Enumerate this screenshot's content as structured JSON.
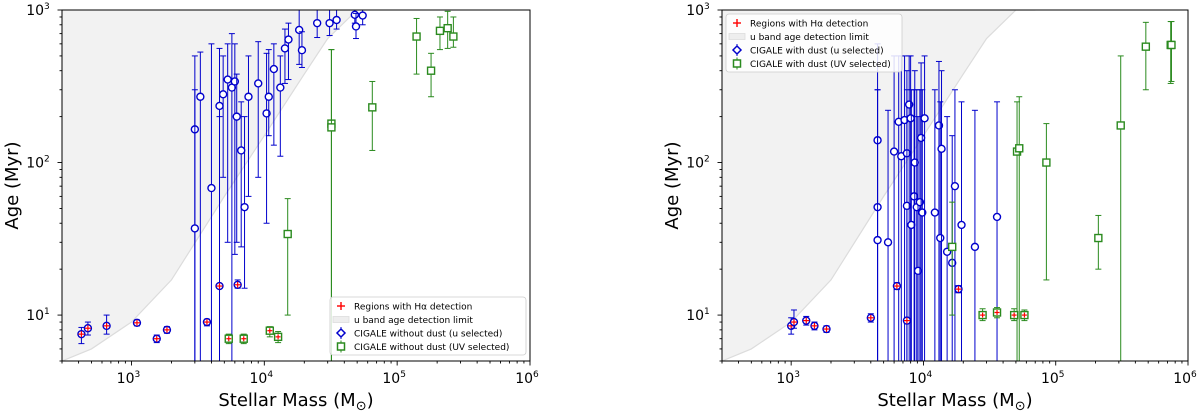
{
  "chart_data": [
    {
      "id": "left",
      "type": "scatter",
      "xscale": "log",
      "yscale": "log",
      "xlim": [
        300,
        1000000
      ],
      "ylim": [
        5,
        1000
      ],
      "xlabel": "Stellar Mass (M$_\\odot$)",
      "xlabel_text": "Stellar Mass (M",
      "xlabel_sub": "⊙",
      "xlabel_close": ")",
      "ylabel": "Age (Myr)",
      "xticks": [
        1000,
        10000,
        100000,
        1000000
      ],
      "xtick_exponents": [
        "3",
        "4",
        "5",
        "6"
      ],
      "yticks": [
        10,
        100,
        1000
      ],
      "ytick_exponents": [
        "1",
        "2",
        "3"
      ],
      "legend_position": "bottom-right",
      "legend": [
        {
          "label": "Regions with Hα detection",
          "marker": "plus",
          "color": "#ff0000"
        },
        {
          "label": "u band age detection limit",
          "marker": "band",
          "color": "#dddddd"
        },
        {
          "label": "CIGALE without dust (u selected)",
          "marker": "diamond",
          "color": "#0000cc"
        },
        {
          "label": "CIGALE  without dust (UV selected)",
          "marker": "square",
          "color": "#2a8a1e"
        }
      ],
      "detection_limit": {
        "mass": [
          300,
          500,
          1000,
          2000,
          5000,
          10000,
          20000,
          30000,
          50000
        ],
        "age": [
          5,
          6,
          9,
          17,
          60,
          150,
          380,
          650,
          1000
        ]
      },
      "series": [
        {
          "name": "CIGALE without dust (u selected)",
          "marker": "circle",
          "color": "#0000cc",
          "points": [
            {
              "x": 3000,
              "y": 165,
              "lo": 5,
              "hi": 500
            },
            {
              "x": 3000,
              "y": 37,
              "lo": 5,
              "hi": 300
            },
            {
              "x": 3300,
              "y": 270,
              "lo": 5,
              "hi": 530
            },
            {
              "x": 4000,
              "y": 68,
              "lo": 5,
              "hi": 600
            },
            {
              "x": 4600,
              "y": 235,
              "lo": 5,
              "hi": 560
            },
            {
              "x": 4600,
              "y": 15.5,
              "lo": 5,
              "hi": 200
            },
            {
              "x": 4900,
              "y": 280,
              "lo": 80,
              "hi": 500
            },
            {
              "x": 5300,
              "y": 350,
              "lo": 30,
              "hi": 600
            },
            {
              "x": 5700,
              "y": 310,
              "lo": 5,
              "hi": 700
            },
            {
              "x": 6000,
              "y": 340,
              "lo": 25,
              "hi": 600
            },
            {
              "x": 6200,
              "y": 200,
              "lo": 30,
              "hi": 380
            },
            {
              "x": 6700,
              "y": 120,
              "lo": 28,
              "hi": 250
            },
            {
              "x": 7100,
              "y": 51,
              "lo": 15,
              "hi": 200
            },
            {
              "x": 7600,
              "y": 270,
              "lo": 60,
              "hi": 500
            },
            {
              "x": 9000,
              "y": 330,
              "lo": 80,
              "hi": 620
            },
            {
              "x": 10400,
              "y": 210,
              "lo": 40,
              "hi": 520
            },
            {
              "x": 10800,
              "y": 270,
              "lo": 150,
              "hi": 550
            },
            {
              "x": 11800,
              "y": 410,
              "lo": 130,
              "hi": 600
            },
            {
              "x": 13200,
              "y": 310,
              "lo": 110,
              "hi": 500
            },
            {
              "x": 14300,
              "y": 560,
              "lo": 330,
              "hi": 750
            },
            {
              "x": 15200,
              "y": 640,
              "lo": 350,
              "hi": 820
            },
            {
              "x": 18300,
              "y": 740,
              "lo": 440,
              "hi": 1000
            },
            {
              "x": 19200,
              "y": 545,
              "lo": 420,
              "hi": 720
            },
            {
              "x": 25000,
              "y": 820,
              "lo": 660,
              "hi": 1000
            },
            {
              "x": 31000,
              "y": 820,
              "lo": 680,
              "hi": 1000
            },
            {
              "x": 35000,
              "y": 860,
              "lo": 750,
              "hi": 1000
            },
            {
              "x": 48000,
              "y": 930,
              "lo": 820,
              "hi": 1000
            },
            {
              "x": 49000,
              "y": 780,
              "lo": 650,
              "hi": 950
            },
            {
              "x": 55000,
              "y": 920,
              "lo": 800,
              "hi": 1000
            },
            {
              "x": 6300,
              "y": 15.8,
              "lo": 15,
              "hi": 17
            }
          ]
        },
        {
          "name": "CIGALE  without dust (UV selected)",
          "marker": "square",
          "color": "#2a8a1e",
          "points": [
            {
              "x": 15000,
              "y": 34,
              "lo": 10,
              "hi": 58
            },
            {
              "x": 32000,
              "y": 180,
              "lo": 5,
              "hi": 550
            },
            {
              "x": 32000,
              "y": 170,
              "lo": 5,
              "hi": 550
            },
            {
              "x": 65000,
              "y": 230,
              "lo": 120,
              "hi": 340
            },
            {
              "x": 140000,
              "y": 670,
              "lo": 380,
              "hi": 880
            },
            {
              "x": 180000,
              "y": 400,
              "lo": 270,
              "hi": 520
            },
            {
              "x": 210000,
              "y": 730,
              "lo": 550,
              "hi": 900
            },
            {
              "x": 240000,
              "y": 760,
              "lo": 560,
              "hi": 980
            },
            {
              "x": 265000,
              "y": 670,
              "lo": 570,
              "hi": 900
            },
            {
              "x": 5400,
              "y": 7,
              "lo": 6.5,
              "hi": 7.5
            },
            {
              "x": 7000,
              "y": 7,
              "lo": 6.5,
              "hi": 7.5
            },
            {
              "x": 11000,
              "y": 7.9,
              "lo": 7.2,
              "hi": 8.4
            },
            {
              "x": 12700,
              "y": 7.2,
              "lo": 6.6,
              "hi": 7.8
            }
          ]
        },
        {
          "name": "Hα detection (left)",
          "marker": "circle-plus",
          "color": "#0000cc",
          "points": [
            {
              "x": 420,
              "y": 7.5,
              "lo": 6.5,
              "hi": 8.3
            },
            {
              "x": 470,
              "y": 8.2,
              "lo": 7.4,
              "hi": 9.0
            },
            {
              "x": 650,
              "y": 8.5,
              "lo": 7.5,
              "hi": 10.0
            },
            {
              "x": 1100,
              "y": 8.9,
              "lo": 8.5,
              "hi": 9.3
            },
            {
              "x": 1550,
              "y": 7.0,
              "lo": 6.6,
              "hi": 7.4
            },
            {
              "x": 1850,
              "y": 8.0,
              "lo": 7.6,
              "hi": 8.4
            },
            {
              "x": 3700,
              "y": 9.0,
              "lo": 8.5,
              "hi": 9.4
            }
          ]
        }
      ]
    },
    {
      "id": "right",
      "type": "scatter",
      "xscale": "log",
      "yscale": "log",
      "xlim": [
        300,
        1000000
      ],
      "ylim": [
        5,
        1000
      ],
      "xlabel": "Stellar Mass (M$_\\odot$)",
      "xlabel_text": "Stellar Mass (M",
      "xlabel_sub": "⊙",
      "xlabel_close": ")",
      "ylabel": "Age (Myr)",
      "xticks": [
        1000,
        10000,
        100000,
        1000000
      ],
      "xtick_exponents": [
        "3",
        "4",
        "5",
        "6"
      ],
      "yticks": [
        10,
        100,
        1000
      ],
      "ytick_exponents": [
        "1",
        "2",
        "3"
      ],
      "legend_position": "top-left",
      "legend": [
        {
          "label": "Regions with Hα detection",
          "marker": "plus",
          "color": "#ff0000"
        },
        {
          "label": "u band age detection limit",
          "marker": "band",
          "color": "#dddddd"
        },
        {
          "label": "CIGALE with dust (u selected)",
          "marker": "diamond",
          "color": "#0000cc"
        },
        {
          "label": "CIGALE with dust (UV selected)",
          "marker": "square",
          "color": "#2a8a1e"
        }
      ],
      "detection_limit": {
        "mass": [
          300,
          500,
          1000,
          2000,
          5000,
          10000,
          20000,
          30000,
          50000,
          70000
        ],
        "age": [
          5,
          6,
          9,
          17,
          60,
          150,
          380,
          650,
          1000,
          1000
        ]
      },
      "series": [
        {
          "name": "CIGALE with dust (u selected)",
          "marker": "circle",
          "color": "#0000cc",
          "points": [
            {
              "x": 4500,
              "y": 140,
              "lo": 5,
              "hi": 600
            },
            {
              "x": 4500,
              "y": 51,
              "lo": 5,
              "hi": 300
            },
            {
              "x": 4500,
              "y": 31,
              "lo": 5,
              "hi": 300
            },
            {
              "x": 5400,
              "y": 30,
              "lo": 5,
              "hi": 220
            },
            {
              "x": 6000,
              "y": 118,
              "lo": 5,
              "hi": 500
            },
            {
              "x": 6500,
              "y": 185,
              "lo": 5,
              "hi": 500
            },
            {
              "x": 6800,
              "y": 110,
              "lo": 5,
              "hi": 500
            },
            {
              "x": 7200,
              "y": 190,
              "lo": 5,
              "hi": 500
            },
            {
              "x": 7500,
              "y": 115,
              "lo": 5,
              "hi": 400
            },
            {
              "x": 7500,
              "y": 52,
              "lo": 5,
              "hi": 300
            },
            {
              "x": 7800,
              "y": 240,
              "lo": 5,
              "hi": 500
            },
            {
              "x": 8000,
              "y": 195,
              "lo": 5,
              "hi": 500
            },
            {
              "x": 8100,
              "y": 39,
              "lo": 5,
              "hi": 300
            },
            {
              "x": 8500,
              "y": 60,
              "lo": 5,
              "hi": 300
            },
            {
              "x": 8600,
              "y": 100,
              "lo": 5,
              "hi": 400
            },
            {
              "x": 8900,
              "y": 51,
              "lo": 5,
              "hi": 300
            },
            {
              "x": 9100,
              "y": 19.5,
              "lo": 5,
              "hi": 200
            },
            {
              "x": 9400,
              "y": 55,
              "lo": 5,
              "hi": 300
            },
            {
              "x": 9600,
              "y": 145,
              "lo": 5,
              "hi": 450
            },
            {
              "x": 9800,
              "y": 47,
              "lo": 5,
              "hi": 300
            },
            {
              "x": 10200,
              "y": 195,
              "lo": 5,
              "hi": 500
            },
            {
              "x": 12200,
              "y": 47,
              "lo": 5,
              "hi": 300
            },
            {
              "x": 13100,
              "y": 175,
              "lo": 5,
              "hi": 460
            },
            {
              "x": 13400,
              "y": 32,
              "lo": 5,
              "hi": 250
            },
            {
              "x": 13700,
              "y": 123,
              "lo": 5,
              "hi": 400
            },
            {
              "x": 15100,
              "y": 26,
              "lo": 5,
              "hi": 200
            },
            {
              "x": 16500,
              "y": 22,
              "lo": 5,
              "hi": 150
            },
            {
              "x": 17300,
              "y": 70,
              "lo": 5,
              "hi": 300
            },
            {
              "x": 19400,
              "y": 39,
              "lo": 5,
              "hi": 250
            },
            {
              "x": 24500,
              "y": 28,
              "lo": 5,
              "hi": 220
            },
            {
              "x": 36000,
              "y": 44,
              "lo": 5,
              "hi": 250
            },
            {
              "x": 6300,
              "y": 15.5,
              "lo": 14.7,
              "hi": 16.3
            },
            {
              "x": 18400,
              "y": 14.8,
              "lo": 14,
              "hi": 15.6
            }
          ]
        },
        {
          "name": "CIGALE with dust (UV selected)",
          "marker": "square",
          "color": "#2a8a1e",
          "points": [
            {
              "x": 16500,
              "y": 28,
              "lo": 10,
              "hi": 55
            },
            {
              "x": 51000,
              "y": 118,
              "lo": 5,
              "hi": 250
            },
            {
              "x": 53000,
              "y": 124,
              "lo": 5,
              "hi": 270
            },
            {
              "x": 85000,
              "y": 100,
              "lo": 17,
              "hi": 180
            },
            {
              "x": 210000,
              "y": 32,
              "lo": 20,
              "hi": 45
            },
            {
              "x": 310000,
              "y": 175,
              "lo": 5,
              "hi": 500
            },
            {
              "x": 480000,
              "y": 575,
              "lo": 300,
              "hi": 830
            },
            {
              "x": 740000,
              "y": 590,
              "lo": 330,
              "hi": 840
            },
            {
              "x": 750000,
              "y": 590,
              "lo": 340,
              "hi": 840
            },
            {
              "x": 28000,
              "y": 10,
              "lo": 9.2,
              "hi": 11
            },
            {
              "x": 36000,
              "y": 10.4,
              "lo": 9.6,
              "hi": 11.2
            },
            {
              "x": 48500,
              "y": 10,
              "lo": 9.2,
              "hi": 11
            },
            {
              "x": 58000,
              "y": 10,
              "lo": 9.2,
              "hi": 10.8
            }
          ]
        },
        {
          "name": "Hα detection (right)",
          "marker": "circle-plus",
          "color": "#0000cc",
          "points": [
            {
              "x": 1000,
              "y": 8.5,
              "lo": 7.5,
              "hi": 9.6
            },
            {
              "x": 1050,
              "y": 9.0,
              "lo": 8.2,
              "hi": 10.8
            },
            {
              "x": 1300,
              "y": 9.2,
              "lo": 8.6,
              "hi": 9.8
            },
            {
              "x": 1500,
              "y": 8.5,
              "lo": 8.0,
              "hi": 9.0
            },
            {
              "x": 1850,
              "y": 8.1,
              "lo": 7.7,
              "hi": 8.5
            },
            {
              "x": 4000,
              "y": 9.6,
              "lo": 9.0,
              "hi": 10.2
            },
            {
              "x": 7500,
              "y": 9.2,
              "lo": 8.8,
              "hi": 9.6
            }
          ]
        }
      ]
    }
  ]
}
